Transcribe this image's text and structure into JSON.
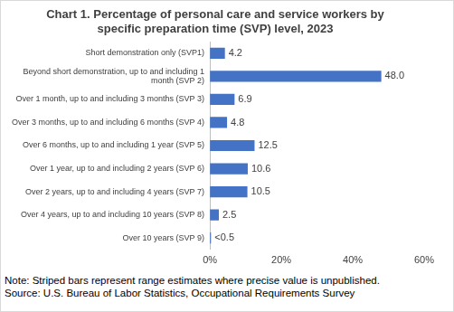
{
  "chart_data": {
    "type": "bar",
    "orientation": "horizontal",
    "title": "Chart 1. Percentage of personal care and service workers by specific preparation time (SVP) level, 2023",
    "categories": [
      "Short demonstration only (SVP1)",
      "Beyond short demonstration, up to and including 1 month (SVP 2)",
      "Over 1 month, up to and including 3 months (SVP 3)",
      "Over 3 months, up to and including 6 months (SVP 4)",
      "Over 6 months, up to and including 1 year (SVP 5)",
      "Over 1 year, up to and including 2 years (SVP 6)",
      "Over 2 years, up to and including 4 years (SVP 7)",
      "Over 4 years, up to and including 10 years (SVP 8)",
      "Over 10 years (SVP 9)"
    ],
    "values": [
      4.2,
      48.0,
      6.9,
      4.8,
      12.5,
      10.6,
      10.5,
      2.5,
      0.3
    ],
    "value_labels": [
      "4.2",
      "48.0",
      "6.9",
      "4.8",
      "12.5",
      "10.6",
      "10.5",
      "2.5",
      "<0.5"
    ],
    "data_labels": true,
    "color": "#4472c4",
    "xlim": [
      0,
      60
    ],
    "xticks": [
      {
        "value": 0,
        "label": "0%"
      },
      {
        "value": 20,
        "label": "20%"
      },
      {
        "value": 40,
        "label": "40%"
      },
      {
        "value": 60,
        "label": "60%"
      }
    ],
    "grid": false,
    "note": "Note: Striped bars represent range estimates where precise value is unpublished.",
    "source": "Source: U.S. Bureau of Labor Statistics, Occupational Requirements Survey"
  }
}
